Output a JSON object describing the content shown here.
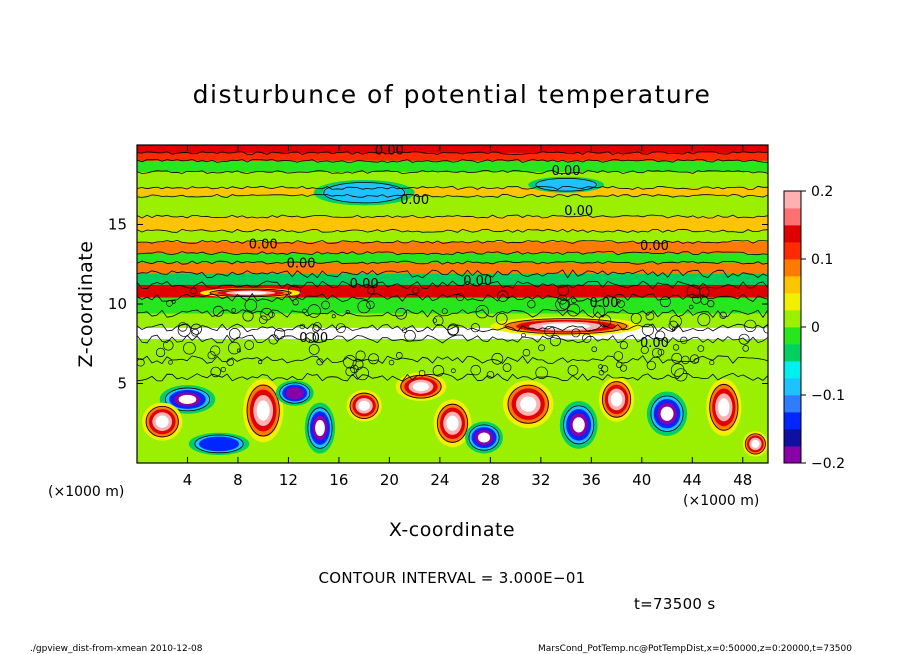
{
  "chart_data": {
    "type": "heatmap",
    "title": "disturbunce of potential temperature",
    "xlabel": "X-coordinate",
    "ylabel": "Z-coordinate",
    "x_unit_left": "(×1000 m)",
    "x_unit_right": "(×1000 m)",
    "xlim": [
      0,
      50
    ],
    "ylim": [
      0,
      20
    ],
    "x_ticks": [
      4,
      8,
      12,
      16,
      20,
      24,
      28,
      32,
      36,
      40,
      44,
      48
    ],
    "y_ticks": [
      5,
      10,
      15
    ],
    "colorbar": {
      "range": [
        -0.2,
        0.2
      ],
      "ticks": [
        {
          "value": 0.2,
          "label": "0.2"
        },
        {
          "value": 0.1,
          "label": "0.1"
        },
        {
          "value": 0,
          "label": "0"
        },
        {
          "value": -0.1,
          "label": "−0.1"
        },
        {
          "value": -0.2,
          "label": "−0.2"
        }
      ],
      "colors": [
        "#8a00a8",
        "#1010a0",
        "#0026ff",
        "#2f7dff",
        "#1cc3ff",
        "#00f0f0",
        "#00d060",
        "#28e61e",
        "#9af000",
        "#f0f000",
        "#ffc400",
        "#ff7a00",
        "#ff2a00",
        "#e00000",
        "#ff7070",
        "#ffb0b0"
      ]
    },
    "contour_interval_text": "CONTOUR INTERVAL = 3.000E−01",
    "time_text": "t=73500 s",
    "contour_labels": [
      "0.00",
      "0.00",
      "0.00",
      "0.00",
      "0.00",
      "0.00",
      "0.00",
      "0.00",
      "0.00",
      "0.00",
      "0.00",
      "0.00"
    ],
    "layers": [
      {
        "z": [
          19.5,
          20.0
        ],
        "value": 0.15
      },
      {
        "z": [
          19.0,
          19.5
        ],
        "value": 0.1
      },
      {
        "z": [
          18.3,
          19.0
        ],
        "value": -0.02
      },
      {
        "z": [
          17.3,
          18.3
        ],
        "value": 0.0
      },
      {
        "z": [
          16.8,
          17.3
        ],
        "value": 0.05
      },
      {
        "z": [
          15.5,
          16.8
        ],
        "value": 0.0
      },
      {
        "z": [
          14.6,
          15.5
        ],
        "value": 0.06
      },
      {
        "z": [
          13.9,
          14.6
        ],
        "value": 0.0
      },
      {
        "z": [
          13.2,
          13.9
        ],
        "value": 0.08
      },
      {
        "z": [
          12.6,
          13.2
        ],
        "value": -0.02
      },
      {
        "z": [
          11.9,
          12.6
        ],
        "value": 0.09
      },
      {
        "z": [
          11.2,
          11.9
        ],
        "value": -0.03
      },
      {
        "z": [
          10.4,
          11.2
        ],
        "value": 0.14
      },
      {
        "z": [
          9.4,
          10.4
        ],
        "value": -0.01
      },
      {
        "z": [
          8.5,
          9.4
        ],
        "value": 0.01
      },
      {
        "z": [
          7.8,
          8.5
        ],
        "value": 0.22
      },
      {
        "z": [
          6.5,
          7.8
        ],
        "value": 0.0
      },
      {
        "z": [
          5.4,
          6.5
        ],
        "value": 0.02
      },
      {
        "z": [
          0.0,
          5.4
        ],
        "value": 0.0
      }
    ],
    "blobs": [
      {
        "x": 4,
        "z": 4.0,
        "rx": 2.2,
        "rz": 0.9,
        "value": -0.25
      },
      {
        "x": 2,
        "z": 2.6,
        "rx": 1.6,
        "rz": 1.2,
        "value": 0.25
      },
      {
        "x": 6.5,
        "z": 1.2,
        "rx": 2.4,
        "rz": 0.7,
        "value": -0.15
      },
      {
        "x": 10,
        "z": 3.3,
        "rx": 1.6,
        "rz": 2.0,
        "value": 0.25
      },
      {
        "x": 12.5,
        "z": 4.4,
        "rx": 1.5,
        "rz": 0.8,
        "value": -0.18
      },
      {
        "x": 14.5,
        "z": 2.2,
        "rx": 1.2,
        "rz": 1.6,
        "value": -0.25
      },
      {
        "x": 18,
        "z": 3.6,
        "rx": 1.4,
        "rz": 1.0,
        "value": 0.22
      },
      {
        "x": 22.5,
        "z": 4.8,
        "rx": 2.0,
        "rz": 0.9,
        "value": 0.3
      },
      {
        "x": 25,
        "z": 2.5,
        "rx": 1.5,
        "rz": 1.5,
        "value": 0.25
      },
      {
        "x": 27.5,
        "z": 1.6,
        "rx": 1.5,
        "rz": 1.0,
        "value": -0.22
      },
      {
        "x": 31,
        "z": 3.7,
        "rx": 2.0,
        "rz": 1.5,
        "value": 0.25
      },
      {
        "x": 35,
        "z": 2.4,
        "rx": 1.5,
        "rz": 1.5,
        "value": -0.22
      },
      {
        "x": 38,
        "z": 4.0,
        "rx": 1.4,
        "rz": 1.4,
        "value": 0.28
      },
      {
        "x": 42,
        "z": 3.1,
        "rx": 1.6,
        "rz": 1.4,
        "value": -0.25
      },
      {
        "x": 46.5,
        "z": 3.5,
        "rx": 1.4,
        "rz": 1.8,
        "value": 0.3
      },
      {
        "x": 49,
        "z": 1.2,
        "rx": 1.0,
        "rz": 0.8,
        "value": 0.2
      },
      {
        "x": 34,
        "z": 8.6,
        "rx": 6.0,
        "rz": 0.6,
        "value": 0.3
      },
      {
        "x": 9,
        "z": 10.7,
        "rx": 4.0,
        "rz": 0.3,
        "value": 0.3
      },
      {
        "x": 18,
        "z": 17.0,
        "rx": 4.0,
        "rz": 0.8,
        "value": -0.08
      },
      {
        "x": 34,
        "z": 17.5,
        "rx": 3.0,
        "rz": 0.5,
        "value": -0.1
      }
    ]
  },
  "footer": {
    "left": "./gpview_dist-from-xmean  2010-12-08",
    "right": "MarsCond_PotTemp.nc@PotTempDist,x=0:50000,z=0:20000,t=73500"
  }
}
